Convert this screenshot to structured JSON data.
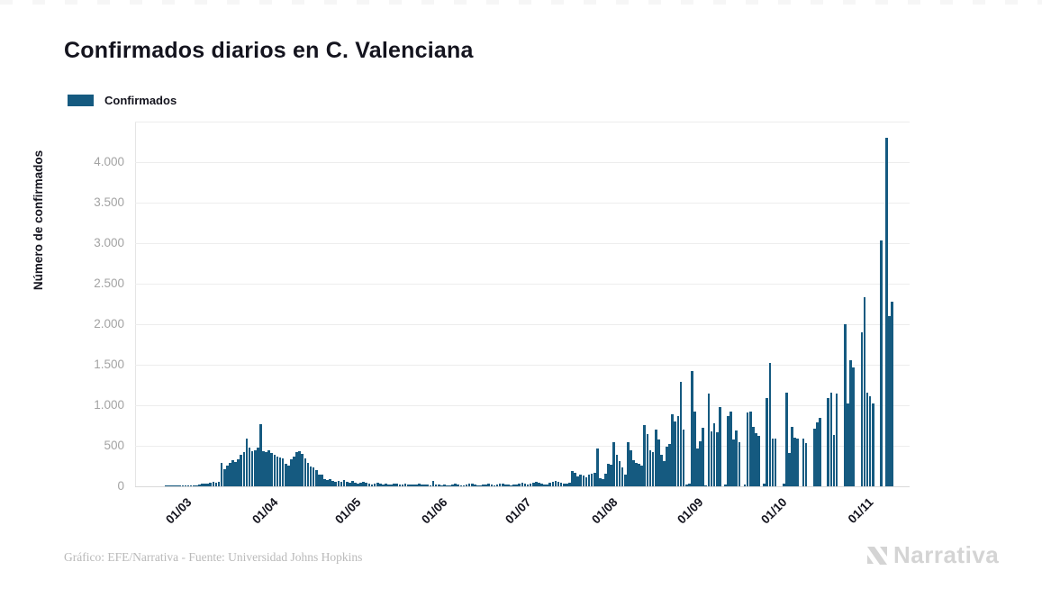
{
  "title": "Confirmados diarios en C. Valenciana",
  "legend": {
    "label": "Confirmados",
    "color": "#155a80"
  },
  "footer": {
    "credit": "Gráfico: EFE/Narrativa - Fuente: Universidad Johns Hopkins",
    "brand": "Narrativa"
  },
  "colors": {
    "bar": "#155a80",
    "title_text": "#14141e",
    "axis_tick_text": "#a3a3a3",
    "gridline": "#ededed",
    "footer_text": "#b9b9b9",
    "brand_logo": "#d4d4d4"
  },
  "chart_data": {
    "type": "bar",
    "title": "Confirmados diarios en C. Valenciana",
    "series_name": "Confirmados",
    "xlabel": "",
    "ylabel": "Número de confirmados",
    "ylim": [
      0,
      4500
    ],
    "ytick_interval": 500,
    "ytick_labels": [
      "0",
      "500",
      "1.000",
      "1.500",
      "2.000",
      "2.500",
      "3.000",
      "3.500",
      "4.000"
    ],
    "grid": true,
    "legend_position": "top-left",
    "xtick_labels": [
      "01/03",
      "01/04",
      "01/05",
      "01/06",
      "01/07",
      "01/08",
      "01/09",
      "01/10",
      "01/11"
    ],
    "xtick_value_index": [
      4,
      35,
      65,
      96,
      126,
      157,
      188,
      218,
      249
    ],
    "values": [
      2,
      1,
      3,
      2,
      2,
      3,
      4,
      6,
      8,
      10,
      12,
      15,
      20,
      28,
      38,
      32,
      45,
      52,
      48,
      60,
      292,
      210,
      255,
      285,
      320,
      300,
      330,
      385,
      425,
      590,
      480,
      430,
      445,
      480,
      765,
      430,
      420,
      445,
      415,
      390,
      370,
      355,
      350,
      280,
      260,
      330,
      370,
      420,
      430,
      395,
      345,
      290,
      250,
      230,
      195,
      150,
      140,
      90,
      75,
      85,
      65,
      55,
      70,
      60,
      75,
      55,
      40,
      65,
      50,
      35,
      45,
      55,
      40,
      30,
      25,
      35,
      40,
      30,
      25,
      30,
      22,
      18,
      28,
      35,
      25,
      20,
      30,
      22,
      18,
      25,
      20,
      28,
      20,
      25,
      18,
      15,
      65,
      25,
      18,
      12,
      20,
      15,
      10,
      22,
      28,
      18,
      12,
      15,
      25,
      35,
      28,
      18,
      12,
      10,
      18,
      22,
      30,
      20,
      15,
      25,
      38,
      35,
      25,
      18,
      14,
      20,
      22,
      35,
      42,
      28,
      18,
      30,
      48,
      55,
      42,
      32,
      26,
      22,
      42,
      58,
      68,
      52,
      45,
      35,
      30,
      48,
      190,
      170,
      120,
      150,
      130,
      110,
      140,
      155,
      165,
      465,
      95,
      90,
      160,
      280,
      265,
      545,
      390,
      310,
      230,
      150,
      545,
      440,
      320,
      290,
      280,
      255,
      760,
      650,
      440,
      420,
      700,
      580,
      390,
      310,
      490,
      520,
      890,
      795,
      870,
      1285,
      705,
      25,
      30,
      1420,
      920,
      465,
      555,
      725,
      15,
      1150,
      680,
      780,
      670,
      980,
      0,
      20,
      865,
      925,
      575,
      690,
      545,
      0,
      25,
      915,
      925,
      735,
      660,
      620,
      0,
      30,
      1090,
      1520,
      590,
      585,
      0,
      0,
      30,
      1160,
      410,
      735,
      605,
      590,
      0,
      590,
      530,
      0,
      0,
      715,
      790,
      850,
      0,
      0,
      1085,
      1160,
      630,
      1145,
      0,
      0,
      2005,
      1020,
      1560,
      1470,
      0,
      0,
      1900,
      2335,
      1160,
      1115,
      1020,
      0,
      0,
      3035,
      0,
      4295,
      2105,
      2280
    ]
  }
}
